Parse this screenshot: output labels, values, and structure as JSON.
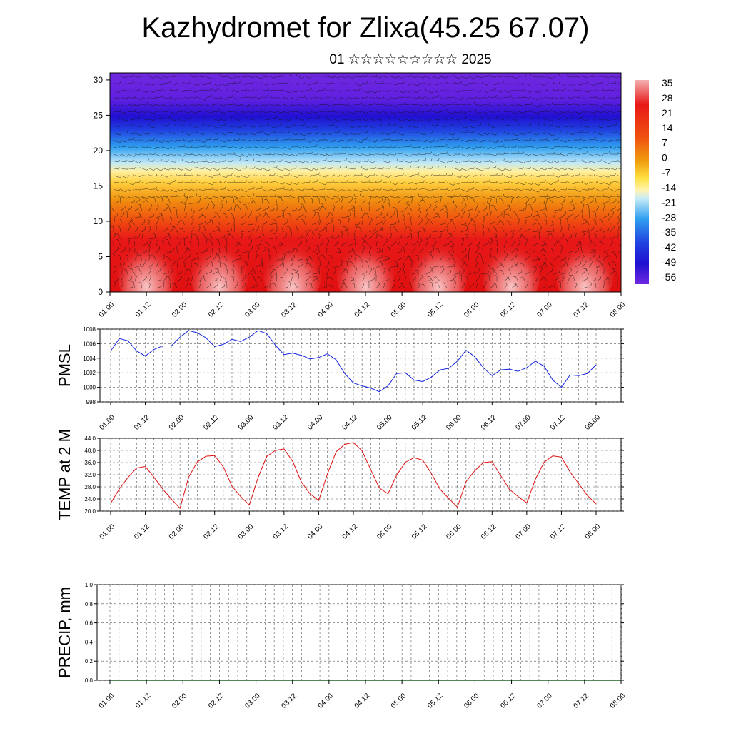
{
  "title": "Kazhydromet for Zlixa(45.25 67.07)",
  "subtitle": "01 ☆☆☆☆☆☆☆☆☆ 2025",
  "chart_data": [
    {
      "type": "heatmap",
      "variable": "temperature cross-section with wind barbs",
      "x_ticks": [
        "01.00",
        "01.12",
        "02.00",
        "02.12",
        "03.00",
        "03.12",
        "04.00",
        "04.12",
        "05.00",
        "05.12",
        "06.00",
        "06.12",
        "07.00",
        "07.12",
        "08.00"
      ],
      "y_ticks": [
        0,
        5,
        10,
        15,
        20,
        25,
        30
      ],
      "ylim": [
        0,
        31
      ],
      "colorbar_labels": [
        "35",
        "28",
        "21",
        "14",
        "7",
        "0",
        "-7",
        "-14",
        "-21",
        "-28",
        "-35",
        "-42",
        "-49",
        "-56"
      ],
      "colors": {
        "hot": "#f4a0a0",
        "warm": "#e01010",
        "orange": "#f08010",
        "yellow": "#ffe040",
        "cold": "#30a0f0",
        "cold2": "#2020e0",
        "coldest": "#7020e0"
      }
    },
    {
      "type": "line",
      "ylabel": "PMSL",
      "ylim": [
        998,
        1008
      ],
      "y_ticks": [
        "998",
        "1000",
        "1002",
        "1004",
        "1006",
        "1008"
      ],
      "x_ticks": [
        "01.00",
        "01.12",
        "02.00",
        "02.12",
        "03.00",
        "03.12",
        "04.00",
        "04.12",
        "05.00",
        "05.12",
        "06.00",
        "06.12",
        "07.00",
        "07.12",
        "08.00"
      ],
      "color": "#1020e0",
      "values": [
        1005.0,
        1006.7,
        1006.4,
        1005.0,
        1004.3,
        1005.2,
        1005.7,
        1005.7,
        1006.9,
        1007.8,
        1007.5,
        1006.8,
        1005.6,
        1005.9,
        1006.6,
        1006.3,
        1006.9,
        1007.8,
        1007.4,
        1005.8,
        1004.5,
        1004.7,
        1004.4,
        1003.9,
        1004.1,
        1004.6,
        1003.8,
        1001.9,
        1000.6,
        1000.2,
        999.9,
        999.4,
        1000.2,
        1001.9,
        1002.0,
        1001.0,
        1000.8,
        1001.4,
        1002.4,
        1002.6,
        1003.6,
        1005.1,
        1004.2,
        1002.7,
        1001.6,
        1002.4,
        1002.5,
        1002.2,
        1002.7,
        1003.6,
        1002.9,
        1001.0,
        1000.0,
        1001.7,
        1001.6,
        1001.9,
        1003.1
      ]
    },
    {
      "type": "line",
      "ylabel": "TEMP at 2 M",
      "ylim": [
        20,
        44
      ],
      "y_ticks": [
        "20.0",
        "24.0",
        "28.0",
        "32.0",
        "36.0",
        "40.0",
        "44.0"
      ],
      "x_ticks": [
        "01.00",
        "01.12",
        "02.00",
        "02.12",
        "03.00",
        "03.12",
        "04.00",
        "04.12",
        "05.00",
        "05.12",
        "06.00",
        "06.12",
        "07.00",
        "07.12",
        "08.00"
      ],
      "color": "#e01010",
      "values": [
        22.6,
        27.3,
        31.1,
        34.2,
        34.7,
        31.2,
        27.3,
        24.0,
        20.9,
        31.2,
        36.2,
        38.1,
        38.3,
        34.6,
        28.2,
        24.8,
        22.0,
        31.0,
        38.0,
        40.0,
        40.5,
        36.4,
        29.6,
        25.7,
        23.5,
        32.2,
        39.5,
        42.0,
        42.6,
        39.9,
        33.7,
        27.6,
        25.7,
        31.9,
        36.1,
        37.6,
        36.8,
        32.4,
        27.2,
        24.2,
        21.3,
        29.7,
        33.3,
        36.0,
        36.3,
        31.7,
        27.2,
        24.8,
        22.7,
        30.5,
        36.1,
        38.2,
        37.8,
        32.9,
        29.0,
        25.1,
        22.4
      ]
    },
    {
      "type": "line",
      "ylabel": "PRECIP, mm",
      "ylim": [
        0,
        1
      ],
      "y_ticks": [
        "0.0",
        "0.2",
        "0.4",
        "0.6",
        "0.8",
        "1.0"
      ],
      "x_ticks": [
        "01.00",
        "01.12",
        "02.00",
        "02.12",
        "03.00",
        "03.12",
        "04.00",
        "04.12",
        "05.00",
        "05.12",
        "06.00",
        "06.12",
        "07.00",
        "07.12",
        "08.00"
      ],
      "color": "#1a6020",
      "values": [
        0,
        0,
        0,
        0,
        0,
        0,
        0,
        0,
        0,
        0,
        0,
        0,
        0,
        0,
        0,
        0,
        0,
        0,
        0,
        0,
        0,
        0,
        0,
        0,
        0,
        0,
        0,
        0,
        0,
        0,
        0,
        0,
        0,
        0,
        0,
        0,
        0,
        0,
        0,
        0,
        0,
        0,
        0,
        0,
        0,
        0,
        0,
        0,
        0,
        0,
        0,
        0,
        0,
        0,
        0,
        0,
        0
      ]
    }
  ]
}
